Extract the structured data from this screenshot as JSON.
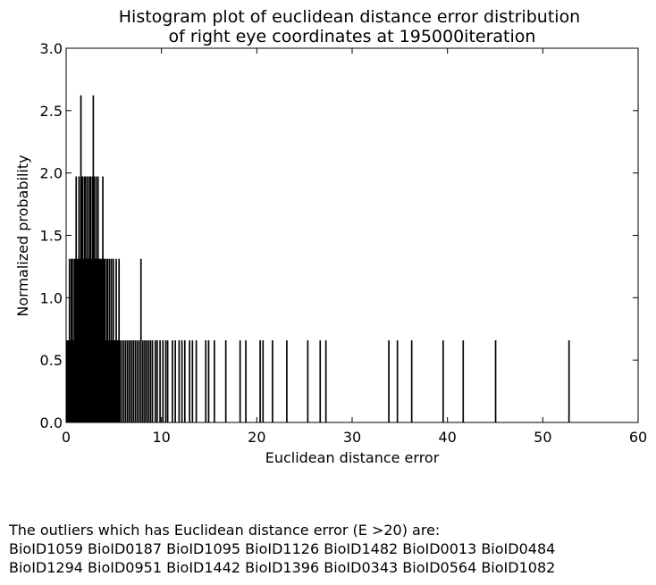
{
  "chart_data": {
    "type": "histogram",
    "title": [
      "Histogram plot of euclidean distance error distribution",
      "of right eye coordinates at 195000iteration"
    ],
    "xlabel": "Euclidean distance error",
    "ylabel": "Normalized probability",
    "xlim": [
      0,
      60
    ],
    "ylim": [
      0,
      3.0
    ],
    "xticks": [
      "0",
      "10",
      "20",
      "30",
      "40",
      "50",
      "60"
    ],
    "yticks": [
      "0.0",
      "0.5",
      "1.0",
      "1.5",
      "2.0",
      "2.5",
      "3.0"
    ],
    "grid": false,
    "legend": "none",
    "bar_color": "#000000",
    "bins": [
      {
        "x": 0.0,
        "y": 0.656
      },
      {
        "x": 0.1,
        "y": 0.656
      },
      {
        "x": 0.2,
        "y": 0.656
      },
      {
        "x": 0.3,
        "y": 1.31
      },
      {
        "x": 0.4,
        "y": 0.656
      },
      {
        "x": 0.5,
        "y": 1.31
      },
      {
        "x": 0.6,
        "y": 1.31
      },
      {
        "x": 0.7,
        "y": 0.656
      },
      {
        "x": 0.8,
        "y": 1.31
      },
      {
        "x": 0.9,
        "y": 1.31
      },
      {
        "x": 1.0,
        "y": 1.97
      },
      {
        "x": 1.1,
        "y": 1.31
      },
      {
        "x": 1.2,
        "y": 1.31
      },
      {
        "x": 1.3,
        "y": 1.97
      },
      {
        "x": 1.4,
        "y": 1.31
      },
      {
        "x": 1.5,
        "y": 2.62
      },
      {
        "x": 1.6,
        "y": 1.97
      },
      {
        "x": 1.7,
        "y": 1.97
      },
      {
        "x": 1.8,
        "y": 1.31
      },
      {
        "x": 1.9,
        "y": 1.97
      },
      {
        "x": 2.0,
        "y": 1.97
      },
      {
        "x": 2.1,
        "y": 1.31
      },
      {
        "x": 2.2,
        "y": 1.97
      },
      {
        "x": 2.3,
        "y": 1.31
      },
      {
        "x": 2.4,
        "y": 1.97
      },
      {
        "x": 2.5,
        "y": 1.97
      },
      {
        "x": 2.6,
        "y": 1.31
      },
      {
        "x": 2.7,
        "y": 1.97
      },
      {
        "x": 2.8,
        "y": 2.62
      },
      {
        "x": 2.9,
        "y": 1.97
      },
      {
        "x": 3.0,
        "y": 1.31
      },
      {
        "x": 3.1,
        "y": 1.97
      },
      {
        "x": 3.2,
        "y": 1.31
      },
      {
        "x": 3.3,
        "y": 1.97
      },
      {
        "x": 3.4,
        "y": 1.31
      },
      {
        "x": 3.5,
        "y": 1.31
      },
      {
        "x": 3.6,
        "y": 1.31
      },
      {
        "x": 3.7,
        "y": 1.31
      },
      {
        "x": 3.8,
        "y": 1.97
      },
      {
        "x": 3.9,
        "y": 1.31
      },
      {
        "x": 4.0,
        "y": 1.31
      },
      {
        "x": 4.1,
        "y": 0.656
      },
      {
        "x": 4.2,
        "y": 1.31
      },
      {
        "x": 4.3,
        "y": 1.31
      },
      {
        "x": 4.4,
        "y": 0.656
      },
      {
        "x": 4.5,
        "y": 1.31
      },
      {
        "x": 4.6,
        "y": 0.656
      },
      {
        "x": 4.7,
        "y": 1.31
      },
      {
        "x": 4.8,
        "y": 0.656
      },
      {
        "x": 4.9,
        "y": 1.31
      },
      {
        "x": 5.0,
        "y": 0.656
      },
      {
        "x": 5.1,
        "y": 0.656
      },
      {
        "x": 5.2,
        "y": 1.31
      },
      {
        "x": 5.3,
        "y": 0.656
      },
      {
        "x": 5.4,
        "y": 0.656
      },
      {
        "x": 5.5,
        "y": 1.31
      },
      {
        "x": 5.6,
        "y": 0.656
      },
      {
        "x": 5.8,
        "y": 0.656
      },
      {
        "x": 6.0,
        "y": 0.656
      },
      {
        "x": 6.2,
        "y": 0.656
      },
      {
        "x": 6.4,
        "y": 0.656
      },
      {
        "x": 6.6,
        "y": 0.656
      },
      {
        "x": 6.8,
        "y": 0.656
      },
      {
        "x": 7.0,
        "y": 0.656
      },
      {
        "x": 7.2,
        "y": 0.656
      },
      {
        "x": 7.4,
        "y": 0.656
      },
      {
        "x": 7.6,
        "y": 0.656
      },
      {
        "x": 7.8,
        "y": 1.31
      },
      {
        "x": 8.0,
        "y": 0.656
      },
      {
        "x": 8.2,
        "y": 0.656
      },
      {
        "x": 8.4,
        "y": 0.656
      },
      {
        "x": 8.6,
        "y": 0.656
      },
      {
        "x": 8.8,
        "y": 0.656
      },
      {
        "x": 9.0,
        "y": 0.656
      },
      {
        "x": 9.3,
        "y": 0.656
      },
      {
        "x": 9.5,
        "y": 0.656
      },
      {
        "x": 9.8,
        "y": 0.656
      },
      {
        "x": 10.1,
        "y": 0.656
      },
      {
        "x": 10.4,
        "y": 0.656
      },
      {
        "x": 10.6,
        "y": 0.656
      },
      {
        "x": 11.1,
        "y": 0.656
      },
      {
        "x": 11.4,
        "y": 0.656
      },
      {
        "x": 11.8,
        "y": 0.656
      },
      {
        "x": 12.1,
        "y": 0.656
      },
      {
        "x": 12.4,
        "y": 0.656
      },
      {
        "x": 12.9,
        "y": 0.656
      },
      {
        "x": 13.2,
        "y": 0.656
      },
      {
        "x": 13.6,
        "y": 0.656
      },
      {
        "x": 14.6,
        "y": 0.656
      },
      {
        "x": 14.9,
        "y": 0.656
      },
      {
        "x": 15.5,
        "y": 0.656
      },
      {
        "x": 16.7,
        "y": 0.656
      },
      {
        "x": 18.2,
        "y": 0.656
      },
      {
        "x": 18.8,
        "y": 0.656
      },
      {
        "x": 20.3,
        "y": 0.656
      },
      {
        "x": 20.6,
        "y": 0.656
      },
      {
        "x": 21.6,
        "y": 0.656
      },
      {
        "x": 23.1,
        "y": 0.656
      },
      {
        "x": 25.3,
        "y": 0.656
      },
      {
        "x": 26.6,
        "y": 0.656
      },
      {
        "x": 27.2,
        "y": 0.656
      },
      {
        "x": 33.8,
        "y": 0.656
      },
      {
        "x": 34.7,
        "y": 0.656
      },
      {
        "x": 36.2,
        "y": 0.656
      },
      {
        "x": 39.5,
        "y": 0.656
      },
      {
        "x": 41.6,
        "y": 0.656
      },
      {
        "x": 45.0,
        "y": 0.656
      },
      {
        "x": 52.7,
        "y": 0.656
      }
    ]
  },
  "outliers": {
    "heading": "The outliers which has Euclidean distance error (E >20) are:",
    "line1": "BioID1059 BioID0187 BioID1095 BioID1126 BioID1482 BioID0013 BioID0484",
    "line2": "BioID1294 BioID0951 BioID1442 BioID1396 BioID0343 BioID0564 BioID1082"
  }
}
